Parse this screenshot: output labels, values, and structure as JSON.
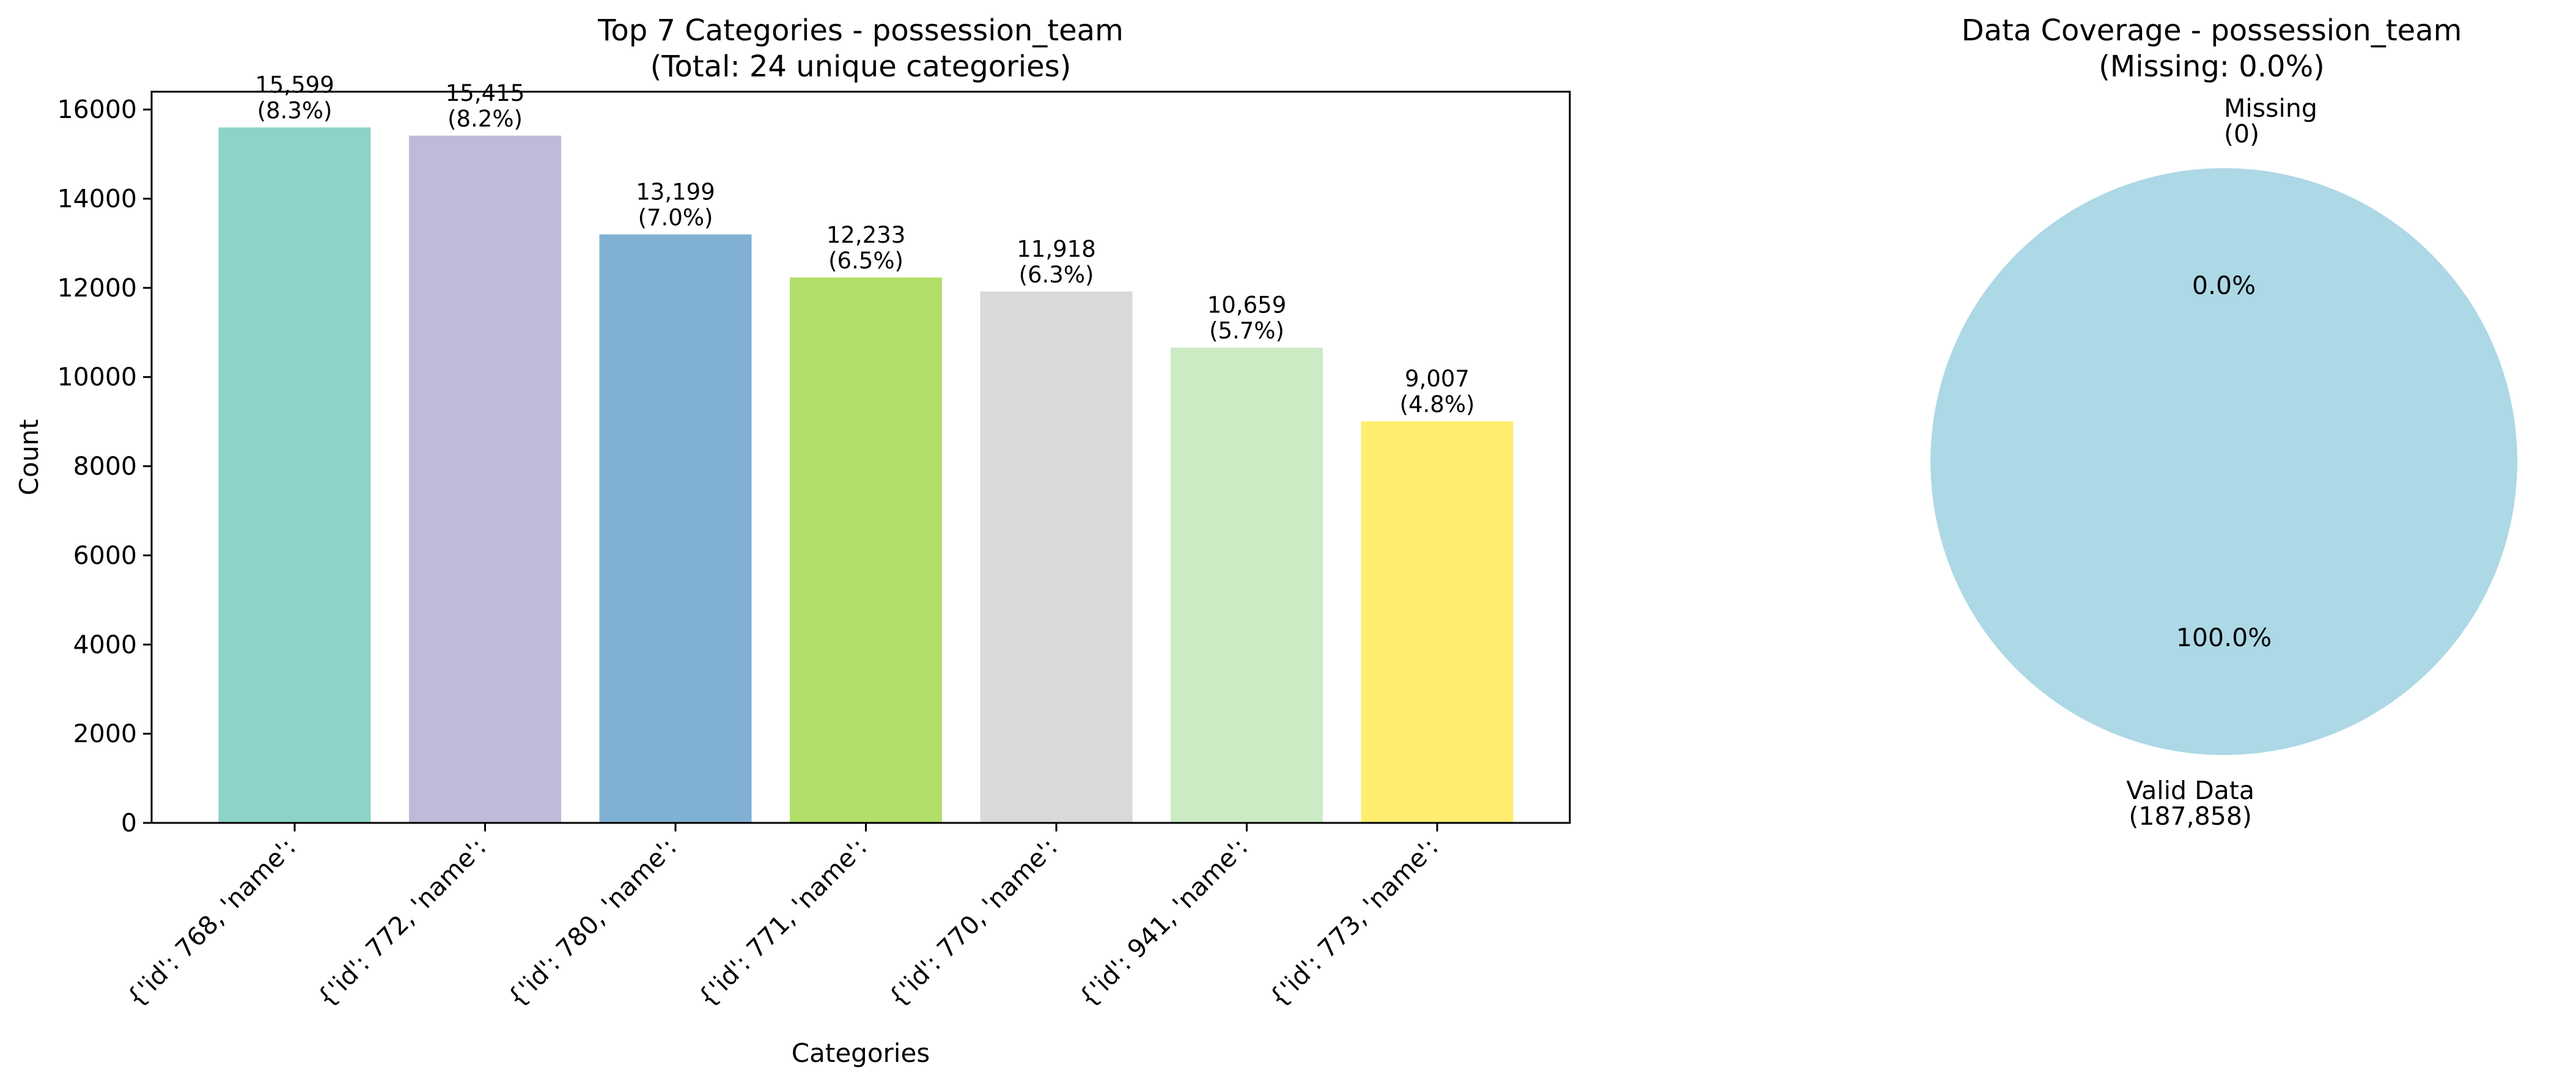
{
  "chart_data": [
    {
      "type": "bar",
      "title": "Top 7 Categories - possession_team",
      "subtitle": "(Total: 24 unique categories)",
      "xlabel": "Categories",
      "ylabel": "Count",
      "ylim": [
        0,
        16400
      ],
      "yticks": [
        0,
        2000,
        4000,
        6000,
        8000,
        10000,
        12000,
        14000,
        16000
      ],
      "grid": false,
      "categories": [
        "{'id': 768, 'name':",
        "{'id': 772, 'name':",
        "{'id': 780, 'name':",
        "{'id': 771, 'name':",
        "{'id': 770, 'name':",
        "{'id': 941, 'name':",
        "{'id': 773, 'name':"
      ],
      "values": [
        15599,
        15415,
        13199,
        12233,
        11918,
        10659,
        9007
      ],
      "value_labels": [
        "15,599",
        "15,415",
        "13,199",
        "12,233",
        "11,918",
        "10,659",
        "9,007"
      ],
      "percent_labels": [
        "(8.3%)",
        "(8.2%)",
        "(7.0%)",
        "(6.5%)",
        "(6.3%)",
        "(5.7%)",
        "(4.8%)"
      ],
      "colors": [
        "#8dd3c7",
        "#bebada",
        "#80b1d3",
        "#b3de69",
        "#d9d9d9",
        "#ccebc5",
        "#ffed6f"
      ]
    },
    {
      "type": "pie",
      "title": "Data Coverage - possession_team",
      "subtitle": "(Missing: 0.0%)",
      "slices": [
        {
          "label": "Valid Data",
          "count_label": "(187,858)",
          "value": 187858,
          "percent_label": "100.0%",
          "color": "#add8e6"
        },
        {
          "label": "Missing",
          "count_label": "(0)",
          "value": 0,
          "percent_label": "0.0%",
          "color": "#ffb6c1"
        }
      ]
    }
  ]
}
